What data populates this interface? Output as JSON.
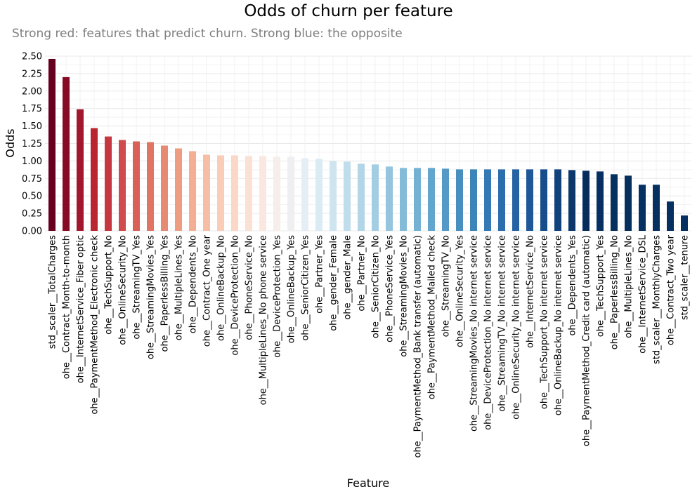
{
  "chart_data": {
    "type": "bar",
    "title": "Odds of churn per feature",
    "subtitle": "Strong red: features that predict churn. Strong blue: the opposite",
    "xlabel": "Feature",
    "ylabel": "Odds",
    "ylim": [
      0,
      2.5
    ],
    "yticks": [
      "0.00",
      "0.25",
      "0.50",
      "0.75",
      "1.00",
      "1.25",
      "1.50",
      "1.75",
      "2.00",
      "2.25",
      "2.50"
    ],
    "grid": true,
    "categories": [
      "std_scaler__TotalCharges",
      "ohe__Contract_Month-to-month",
      "ohe__InternetService_Fiber optic",
      "ohe__PaymentMethod_Electronic check",
      "ohe__TechSupport_No",
      "ohe__OnlineSecurity_No",
      "ohe__StreamingTV_Yes",
      "ohe__StreamingMovies_Yes",
      "ohe__PaperlessBilling_Yes",
      "ohe__MultipleLines_Yes",
      "ohe__Dependents_No",
      "ohe__Contract_One year",
      "ohe__OnlineBackup_No",
      "ohe__DeviceProtection_No",
      "ohe__PhoneService_No",
      "ohe__MultipleLines_No phone service",
      "ohe__DeviceProtection_Yes",
      "ohe__OnlineBackup_Yes",
      "ohe__SeniorCitizen_Yes",
      "ohe__Partner_Yes",
      "ohe__gender_Female",
      "ohe__gender_Male",
      "ohe__Partner_No",
      "ohe__SeniorCitizen_No",
      "ohe__PhoneService_Yes",
      "ohe__StreamingMovies_No",
      "ohe__PaymentMethod_Bank transfer (automatic)",
      "ohe__PaymentMethod_Mailed check",
      "ohe__StreamingTV_No",
      "ohe__OnlineSecurity_Yes",
      "ohe__StreamingMovies_No internet service",
      "ohe__DeviceProtection_No internet service",
      "ohe__StreamingTV_No internet service",
      "ohe__OnlineSecurity_No internet service",
      "ohe__InternetService_No",
      "ohe__TechSupport_No internet service",
      "ohe__OnlineBackup_No internet service",
      "ohe__Dependents_Yes",
      "ohe__PaymentMethod_Credit card (automatic)",
      "ohe__TechSupport_Yes",
      "ohe__PaperlessBilling_No",
      "ohe__MultipleLines_No",
      "ohe__InternetService_DSL",
      "std_scaler__MonthlyCharges",
      "ohe__Contract_Two year",
      "std_scaler__tenure"
    ],
    "values": [
      2.46,
      2.2,
      1.74,
      1.47,
      1.35,
      1.3,
      1.28,
      1.27,
      1.22,
      1.18,
      1.14,
      1.09,
      1.08,
      1.08,
      1.07,
      1.07,
      1.06,
      1.06,
      1.04,
      1.03,
      1.0,
      0.99,
      0.96,
      0.95,
      0.92,
      0.9,
      0.9,
      0.9,
      0.89,
      0.88,
      0.88,
      0.88,
      0.88,
      0.88,
      0.88,
      0.88,
      0.88,
      0.87,
      0.86,
      0.85,
      0.81,
      0.79,
      0.66,
      0.66,
      0.42,
      0.22
    ],
    "colors": [
      "#67001f",
      "#860b24",
      "#a2172b",
      "#b92632",
      "#c6373f",
      "#cf4b4d",
      "#d86058",
      "#e07465",
      "#e78a74",
      "#ee9d82",
      "#f3ae93",
      "#f6bea5",
      "#f9cdb8",
      "#fad7c7",
      "#fbe0d4",
      "#fae8e0",
      "#f6eeea",
      "#efeff2",
      "#e5eef4",
      "#daebf3",
      "#cee4ef",
      "#c0ddeb",
      "#b2d5e7",
      "#a3cde2",
      "#94c4de",
      "#84bbd9",
      "#74b1d3",
      "#63a6cd",
      "#559ac7",
      "#488fc0",
      "#3d84b9",
      "#3479b3",
      "#2c6ead",
      "#2563a4",
      "#1e5898",
      "#174d8b",
      "#11427b",
      "#0b376b",
      "#052c5d",
      "#053061",
      "#05305f",
      "#05305d",
      "#053061",
      "#05305f",
      "#053061",
      "#053061"
    ]
  }
}
